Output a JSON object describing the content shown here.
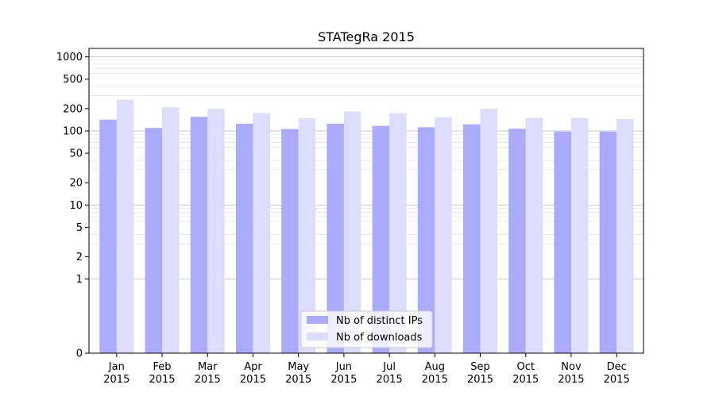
{
  "chart_data": {
    "type": "bar",
    "title": "STATegRa 2015",
    "xlabel": "",
    "ylabel": "",
    "yscale": "symlog",
    "ylim": [
      0,
      1300
    ],
    "yticks": [
      0,
      1,
      2,
      5,
      10,
      20,
      50,
      100,
      200,
      500,
      1000
    ],
    "grid": true,
    "legend_position": "bottom-center",
    "categories": [
      [
        "Jan",
        "2015"
      ],
      [
        "Feb",
        "2015"
      ],
      [
        "Mar",
        "2015"
      ],
      [
        "Apr",
        "2015"
      ],
      [
        "May",
        "2015"
      ],
      [
        "Jun",
        "2015"
      ],
      [
        "Jul",
        "2015"
      ],
      [
        "Aug",
        "2015"
      ],
      [
        "Sep",
        "2015"
      ],
      [
        "Oct",
        "2015"
      ],
      [
        "Nov",
        "2015"
      ],
      [
        "Dec",
        "2015"
      ]
    ],
    "series": [
      {
        "name": "Nb of distinct IPs",
        "color": "#aaaaff",
        "values": [
          142,
          110,
          155,
          125,
          106,
          125,
          117,
          112,
          123,
          107,
          98,
          98
        ]
      },
      {
        "name": "Nb of downloads",
        "color": "#ddddff",
        "values": [
          265,
          208,
          200,
          175,
          148,
          183,
          174,
          153,
          200,
          150,
          150,
          145
        ]
      }
    ]
  }
}
